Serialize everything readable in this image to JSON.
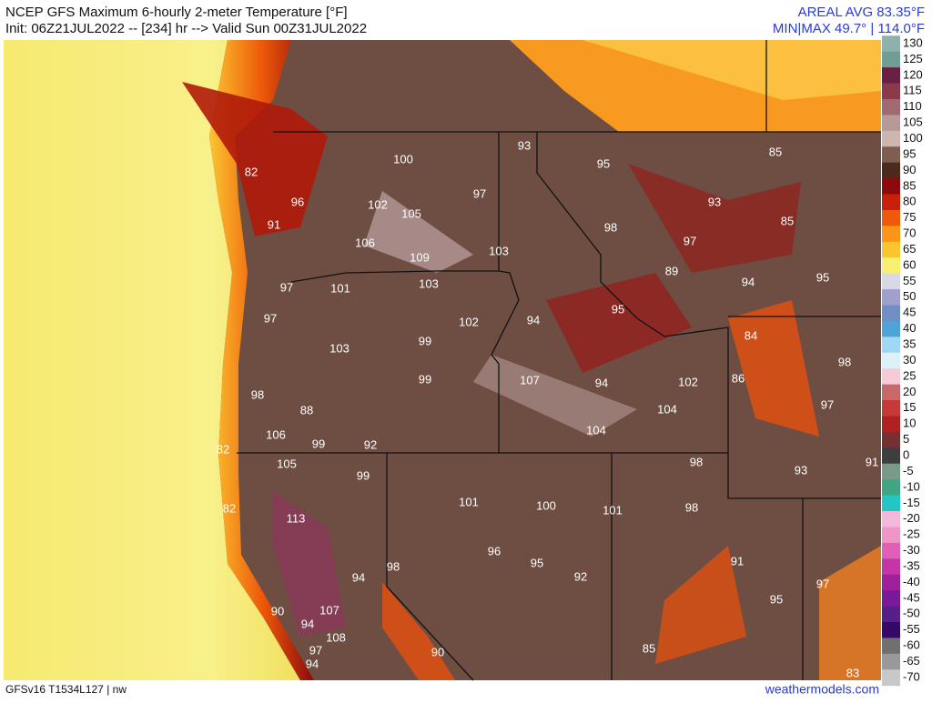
{
  "header": {
    "title": "NCEP GFS Maximum 6-hourly 2-meter Temperature [°F]",
    "subtitle": "Init: 06Z21JUL2022 -- [234] hr --> Valid Sun 00Z31JUL2022",
    "areal_avg": "AREAL AVG 83.35°F",
    "min_max": "MIN|MAX 49.7° | 114.0°F"
  },
  "colorbar": {
    "ticks": [
      130,
      125,
      120,
      115,
      110,
      105,
      100,
      95,
      90,
      85,
      80,
      75,
      70,
      65,
      60,
      55,
      50,
      45,
      40,
      35,
      30,
      25,
      20,
      15,
      10,
      5,
      0,
      -5,
      -10,
      -15,
      -20,
      -25,
      -30,
      -35,
      -40,
      -45,
      -50,
      -55,
      -60,
      -65,
      -70
    ],
    "colors": [
      "#8fb0ad",
      "#6f9e95",
      "#6a1f45",
      "#8a3a4a",
      "#a06a70",
      "#b69a9a",
      "#cbb7b0",
      "#7d5e50",
      "#4e2a1c",
      "#8c0a0a",
      "#c8200a",
      "#ee5a0a",
      "#fb9418",
      "#fbc530",
      "#f8f070",
      "#d8d8e8",
      "#a0a0cc",
      "#6f8fc5",
      "#4da4d8",
      "#9fd8f5",
      "#def0fa",
      "#f6cbd5",
      "#c86868",
      "#c83838",
      "#b02222",
      "#763030",
      "#3e3e3e",
      "#7a9a88",
      "#3fa683",
      "#22c7c5",
      "#f4b8d8",
      "#f095c8",
      "#e060b8",
      "#c435a8",
      "#a0209a",
      "#7a1a9a",
      "#562088",
      "#360868",
      "#707070",
      "#999999",
      "#c8c8c8"
    ]
  },
  "map_labels": [
    82,
    96,
    91,
    100,
    97,
    102,
    105,
    106,
    109,
    103,
    97,
    101,
    103,
    97,
    102,
    99,
    103,
    99,
    98,
    88,
    106,
    99,
    92,
    82,
    105,
    99,
    113,
    82,
    101,
    100,
    101,
    96,
    95,
    92,
    94,
    98,
    90,
    107,
    94,
    108,
    97,
    94,
    90,
    93,
    95,
    98,
    93,
    97,
    89,
    94,
    85,
    85,
    95,
    94,
    95,
    107,
    94,
    102,
    104,
    104,
    84,
    86,
    98,
    97,
    98,
    98,
    93,
    91,
    91,
    95,
    97,
    85,
    83
  ],
  "footer": {
    "model": "GFSv16 T1534L127 | nw",
    "site": "weathermodels.com"
  }
}
